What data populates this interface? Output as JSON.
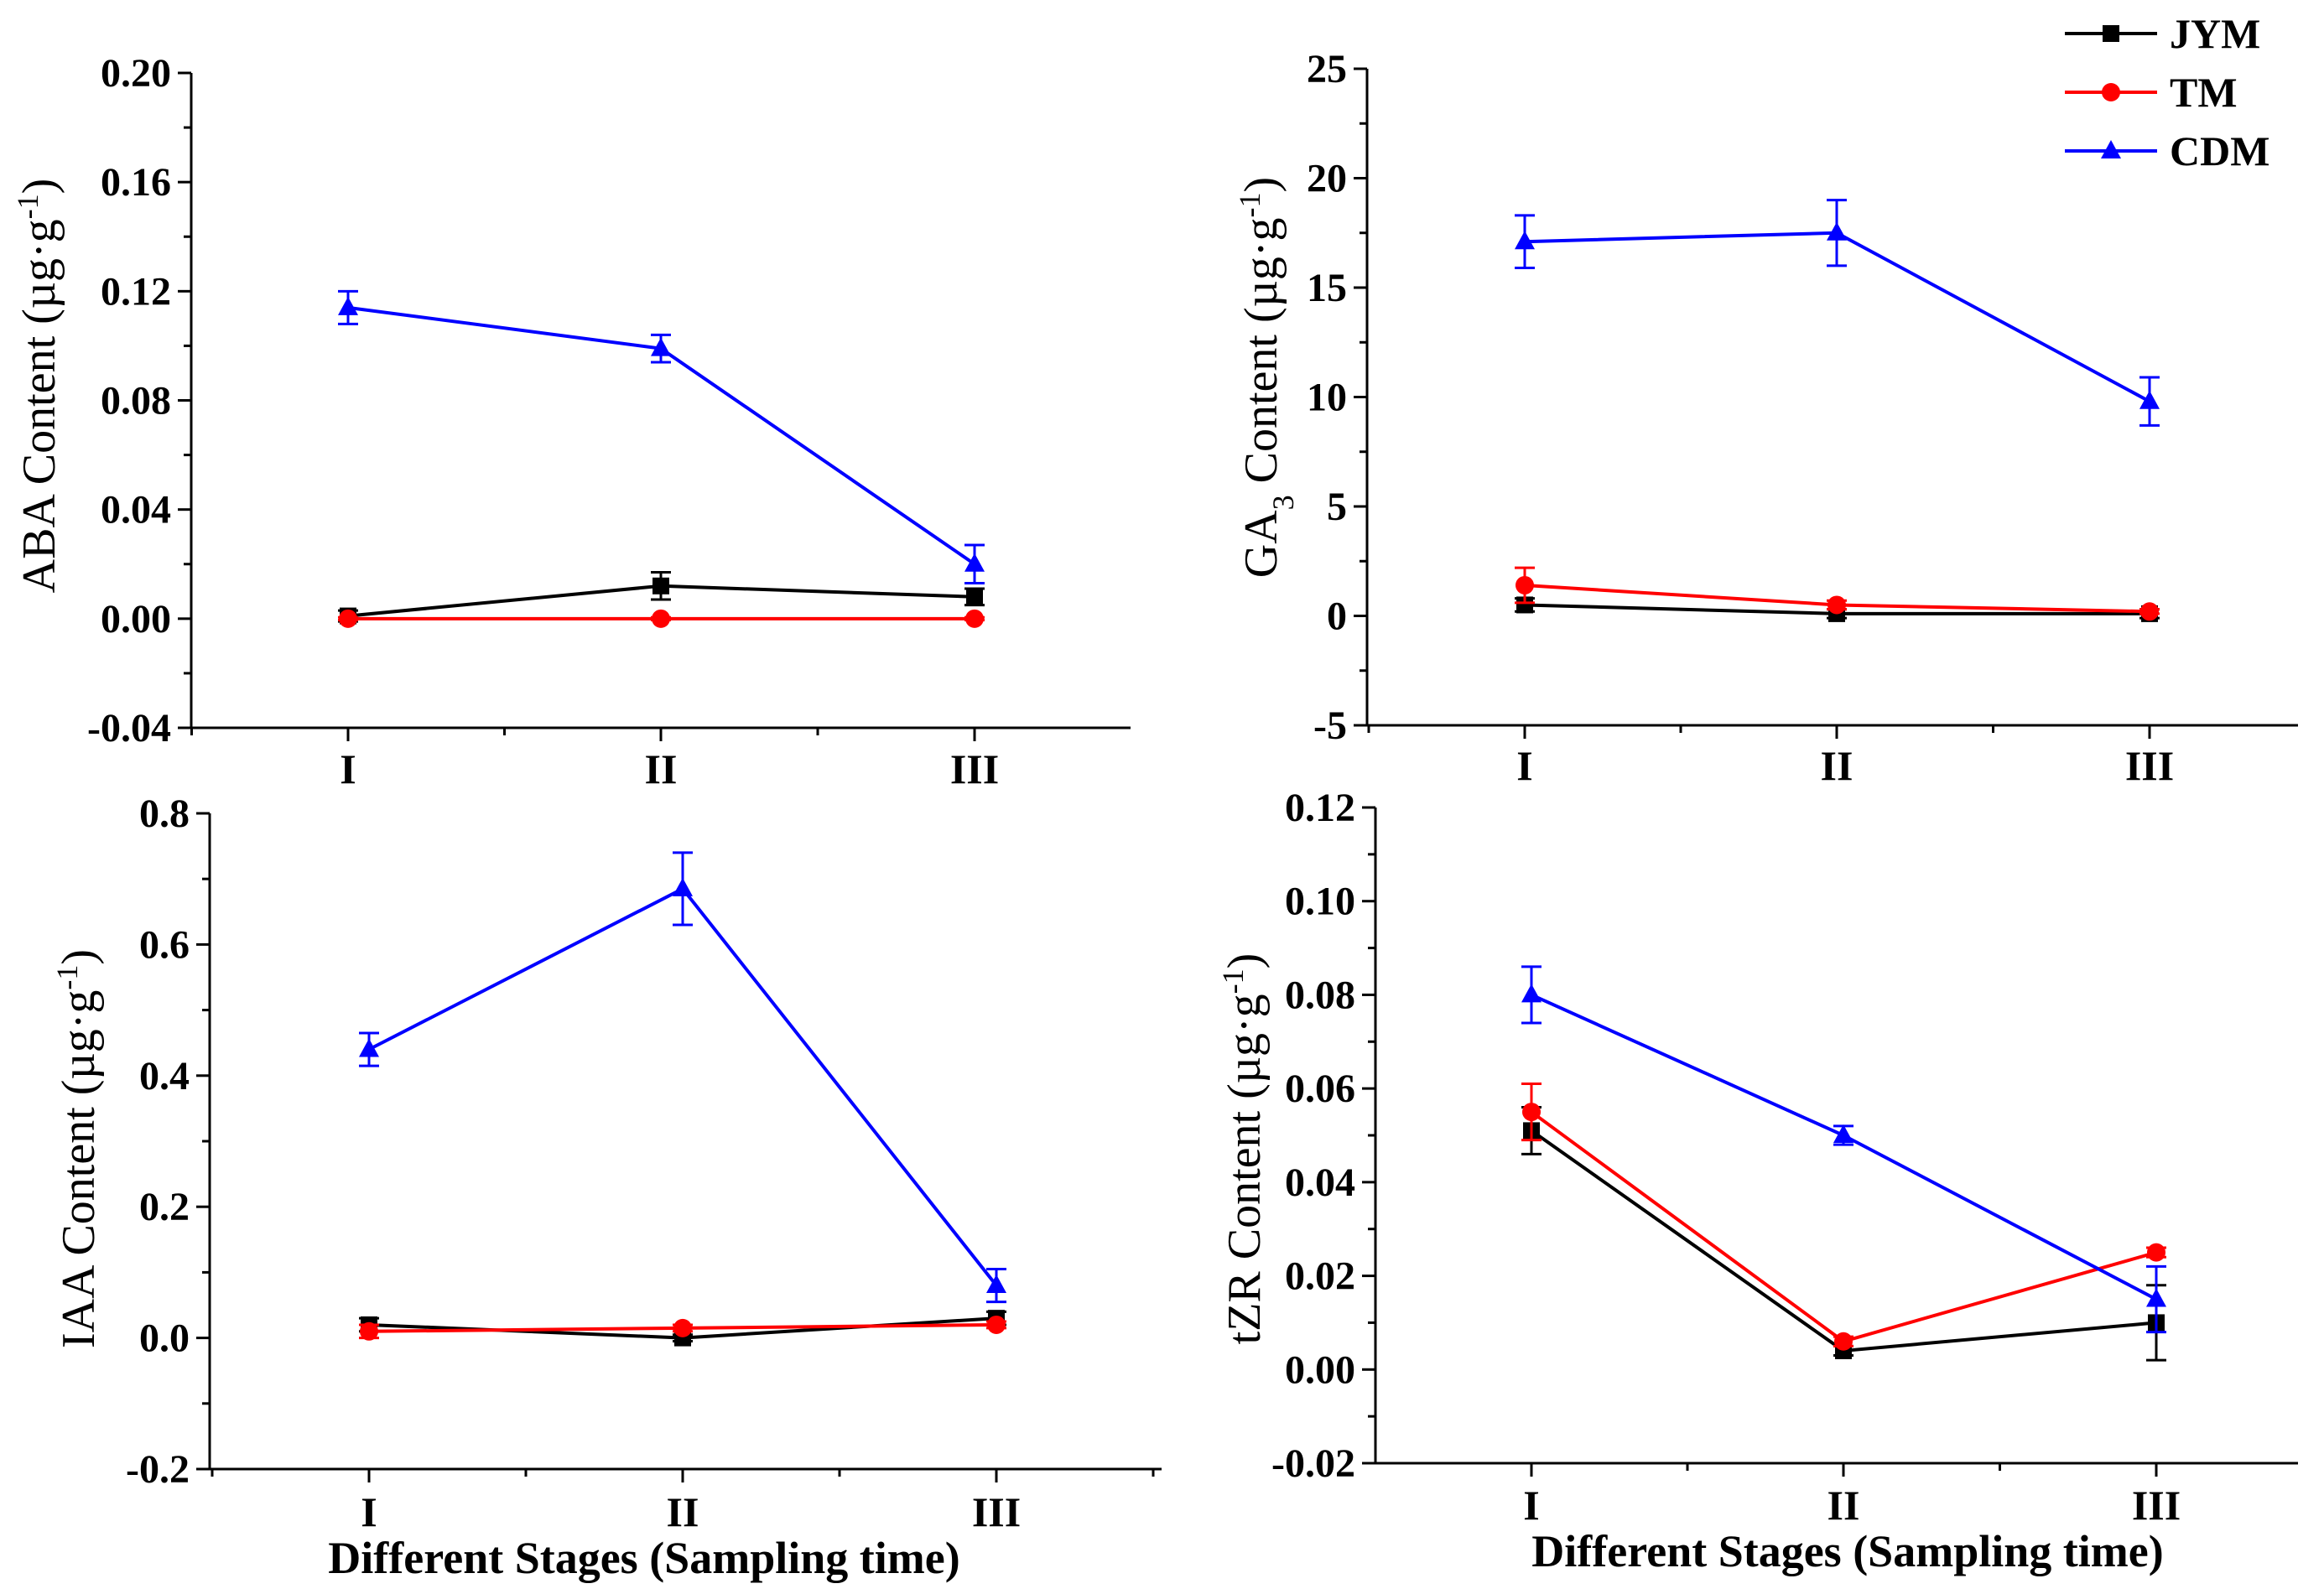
{
  "colors": {
    "JYM": "#000000",
    "TM": "#ff0000",
    "CDM": "#0000ff"
  },
  "legend": [
    {
      "key": "JYM",
      "label": "JYM",
      "marker": "square"
    },
    {
      "key": "TM",
      "label": "TM",
      "marker": "circle"
    },
    {
      "key": "CDM",
      "label": "CDM",
      "marker": "triangle"
    }
  ],
  "x_axis_title": "Different Stages (Sampling time)",
  "chart_data": [
    {
      "type": "line",
      "id": "aba",
      "ylabel": "ABA Content (µg·g",
      "ylabel_sup": "-1",
      "ylabel_end": ")",
      "categories": [
        "I",
        "II",
        "III"
      ],
      "ylim": [
        -0.04,
        0.2
      ],
      "yticks": [
        -0.04,
        0.0,
        0.04,
        0.08,
        0.12,
        0.16,
        0.2
      ],
      "ytick_labels": [
        "-0.04",
        "0.00",
        "0.04",
        "0.08",
        "0.12",
        "0.16",
        "0.20"
      ],
      "series": [
        {
          "name": "JYM",
          "values": [
            0.001,
            0.012,
            0.008
          ],
          "errors": [
            0.002,
            0.005,
            0.003
          ]
        },
        {
          "name": "TM",
          "values": [
            0.0,
            0.0,
            0.0
          ],
          "errors": [
            0.0005,
            0.0005,
            0.0005
          ]
        },
        {
          "name": "CDM",
          "values": [
            0.114,
            0.099,
            0.02
          ],
          "errors": [
            0.006,
            0.005,
            0.007
          ]
        }
      ]
    },
    {
      "type": "line",
      "id": "ga3",
      "ylabel": "GA",
      "ylabel_sub": "3",
      "ylabel_rest": " Content (µg·g",
      "ylabel_sup": "-1",
      "ylabel_end": ")",
      "categories": [
        "I",
        "II",
        "III"
      ],
      "ylim": [
        -5,
        25
      ],
      "yticks": [
        -5,
        0,
        5,
        10,
        15,
        20,
        25
      ],
      "ytick_labels": [
        "-5",
        "0",
        "5",
        "10",
        "15",
        "20",
        "25"
      ],
      "series": [
        {
          "name": "JYM",
          "values": [
            0.5,
            0.1,
            0.1
          ],
          "errors": [
            0.3,
            0.2,
            0.2
          ]
        },
        {
          "name": "TM",
          "values": [
            1.4,
            0.5,
            0.2
          ],
          "errors": [
            0.8,
            0.2,
            0.1
          ]
        },
        {
          "name": "CDM",
          "values": [
            17.1,
            17.5,
            9.8
          ],
          "errors": [
            1.2,
            1.5,
            1.1
          ]
        }
      ]
    },
    {
      "type": "line",
      "id": "iaa",
      "ylabel": "IAA Content (µg·g",
      "ylabel_sup": "-1",
      "ylabel_end": ")",
      "categories": [
        "I",
        "II",
        "III"
      ],
      "ylim": [
        -0.2,
        0.8
      ],
      "yticks": [
        -0.2,
        0.0,
        0.2,
        0.4,
        0.6,
        0.8
      ],
      "ytick_labels": [
        "-0.2",
        "0.0",
        "0.2",
        "0.4",
        "0.6",
        "0.8"
      ],
      "series": [
        {
          "name": "JYM",
          "values": [
            0.02,
            0.0,
            0.03
          ],
          "errors": [
            0.01,
            0.005,
            0.01
          ]
        },
        {
          "name": "TM",
          "values": [
            0.01,
            0.015,
            0.02
          ],
          "errors": [
            0.01,
            0.005,
            0.005
          ]
        },
        {
          "name": "CDM",
          "values": [
            0.44,
            0.685,
            0.08
          ],
          "errors": [
            0.025,
            0.055,
            0.025
          ]
        }
      ]
    },
    {
      "type": "line",
      "id": "tzr",
      "ylabel": "tZR Content (µg·g",
      "ylabel_sup": "-1",
      "ylabel_end": ")",
      "categories": [
        "I",
        "II",
        "III"
      ],
      "ylim": [
        -0.02,
        0.12
      ],
      "yticks": [
        -0.02,
        0.0,
        0.02,
        0.04,
        0.06,
        0.08,
        0.1,
        0.12
      ],
      "ytick_labels": [
        "-0.02",
        "0.00",
        "0.02",
        "0.04",
        "0.06",
        "0.08",
        "0.10",
        "0.12"
      ],
      "series": [
        {
          "name": "JYM",
          "values": [
            0.051,
            0.004,
            0.01
          ],
          "errors": [
            0.005,
            0.001,
            0.008
          ]
        },
        {
          "name": "TM",
          "values": [
            0.055,
            0.006,
            0.025
          ],
          "errors": [
            0.006,
            0.001,
            0.001
          ]
        },
        {
          "name": "CDM",
          "values": [
            0.08,
            0.05,
            0.015
          ],
          "errors": [
            0.006,
            0.002,
            0.007
          ]
        }
      ]
    }
  ]
}
